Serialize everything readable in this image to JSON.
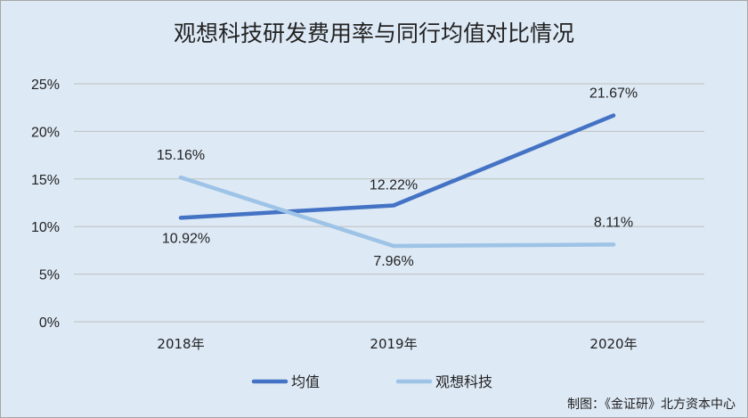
{
  "chart_data": {
    "type": "line",
    "title": "观想科技研发费用率与同行均值对比情况",
    "categories": [
      "2018年",
      "2019年",
      "2020年"
    ],
    "series": [
      {
        "name": "均值",
        "values": [
          10.92,
          12.22,
          21.67
        ],
        "labels": [
          "10.92%",
          "12.22%",
          "21.67%"
        ],
        "color": "#4472c4"
      },
      {
        "name": "观想科技",
        "values": [
          15.16,
          7.96,
          8.11
        ],
        "labels": [
          "15.16%",
          "7.96%",
          "8.11%"
        ],
        "color": "#9dc3e6"
      }
    ],
    "y_ticks": [
      0,
      5,
      10,
      15,
      20,
      25
    ],
    "y_tick_labels": [
      "0%",
      "5%",
      "10%",
      "15%",
      "20%",
      "25%"
    ],
    "ylim": [
      0,
      25
    ],
    "grid": true,
    "legend_position": "bottom"
  },
  "credit": "制图：《金证研》北方资本中心",
  "colors": {
    "background": "#dde9f5",
    "grid": "#bfbfbf"
  }
}
